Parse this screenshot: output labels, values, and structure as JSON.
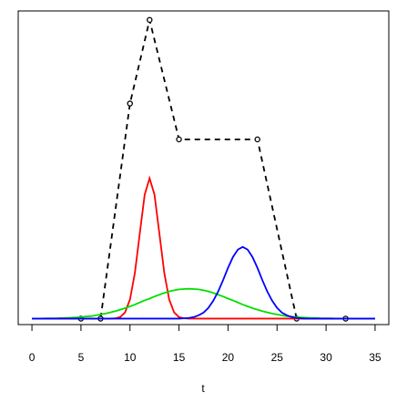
{
  "chart_data": {
    "type": "line",
    "x_label": "t",
    "xlim": [
      -1.4,
      36.4
    ],
    "ylim": [
      -0.02,
      1.03
    ],
    "xticks": [
      0,
      5,
      10,
      15,
      20,
      25,
      30,
      35
    ],
    "series": [
      {
        "color": "#000000",
        "dash": true,
        "markers": true,
        "x": [
          5,
          7,
          10,
          12,
          15,
          23,
          27,
          32
        ],
        "values": [
          0,
          0,
          0.72,
          1,
          0.6,
          0.6,
          0,
          0
        ]
      },
      {
        "color": "#ff0000",
        "dash": false,
        "markers": false,
        "x": [
          0,
          0.5,
          1,
          1.5,
          2,
          2.5,
          3,
          3.5,
          4,
          4.5,
          5,
          5.5,
          6,
          6.5,
          7,
          7.5,
          8,
          8.5,
          9,
          9.5,
          10,
          10.5,
          11,
          11.5,
          12,
          12.5,
          13,
          13.5,
          14,
          14.5,
          15,
          15.5,
          16,
          16.5,
          17,
          17.5,
          18,
          18.5,
          19,
          19.5,
          20,
          20.5,
          21,
          21.5,
          22,
          22.5,
          23,
          23.5,
          24,
          24.5,
          25,
          25.5,
          26,
          26.5,
          27,
          27.5,
          28,
          28.5,
          29,
          29.5,
          30,
          30.5,
          31,
          31.5,
          32,
          32.5,
          33,
          33.5,
          34,
          34.5,
          35
        ],
        "values": [
          0,
          0,
          0,
          0,
          0,
          0,
          0,
          0,
          0,
          0,
          0,
          0,
          0,
          0,
          0,
          0,
          0,
          0.001,
          0.005,
          0.021,
          0.064,
          0.153,
          0.285,
          0.415,
          0.47,
          0.415,
          0.285,
          0.153,
          0.064,
          0.021,
          0.005,
          0.001,
          0,
          0,
          0,
          0,
          0,
          0,
          0,
          0,
          0,
          0,
          0,
          0,
          0,
          0,
          0,
          0,
          0,
          0,
          0,
          0,
          0,
          0,
          0,
          0,
          0,
          0,
          0,
          0,
          0,
          0,
          0,
          0,
          0,
          0,
          0,
          0,
          0,
          0,
          0
        ]
      },
      {
        "color": "#00e000",
        "dash": false,
        "markers": false,
        "x": [
          0,
          0.5,
          1,
          1.5,
          2,
          2.5,
          3,
          3.5,
          4,
          4.5,
          5,
          5.5,
          6,
          6.5,
          7,
          7.5,
          8,
          8.5,
          9,
          9.5,
          10,
          10.5,
          11,
          11.5,
          12,
          12.5,
          13,
          13.5,
          14,
          14.5,
          15,
          15.5,
          16,
          16.5,
          17,
          17.5,
          18,
          18.5,
          19,
          19.5,
          20,
          20.5,
          21,
          21.5,
          22,
          22.5,
          23,
          23.5,
          24,
          24.5,
          25,
          25.5,
          26,
          26.5,
          27,
          27.5,
          28,
          28.5,
          29,
          29.5,
          30,
          30.5,
          31,
          31.5,
          32,
          32.5,
          33,
          33.5,
          34,
          34.5,
          35
        ],
        "values": [
          0,
          0,
          0,
          0.001,
          0.001,
          0.001,
          0.002,
          0.002,
          0.003,
          0.004,
          0.005,
          0.007,
          0.008,
          0.011,
          0.014,
          0.017,
          0.021,
          0.025,
          0.03,
          0.035,
          0.041,
          0.047,
          0.054,
          0.061,
          0.067,
          0.074,
          0.08,
          0.086,
          0.091,
          0.095,
          0.098,
          0.099,
          0.1,
          0.099,
          0.098,
          0.095,
          0.091,
          0.086,
          0.08,
          0.074,
          0.067,
          0.061,
          0.054,
          0.047,
          0.041,
          0.035,
          0.03,
          0.025,
          0.021,
          0.017,
          0.014,
          0.011,
          0.008,
          0.007,
          0.005,
          0.004,
          0.003,
          0.002,
          0.002,
          0.001,
          0.001,
          0.001,
          0,
          0,
          0,
          0,
          0,
          0,
          0,
          0,
          0
        ]
      },
      {
        "color": "#0000ff",
        "dash": false,
        "markers": false,
        "x": [
          0,
          0.5,
          1,
          1.5,
          2,
          2.5,
          3,
          3.5,
          4,
          4.5,
          5,
          5.5,
          6,
          6.5,
          7,
          7.5,
          8,
          8.5,
          9,
          9.5,
          10,
          10.5,
          11,
          11.5,
          12,
          12.5,
          13,
          13.5,
          14,
          14.5,
          15,
          15.5,
          16,
          16.5,
          17,
          17.5,
          18,
          18.5,
          19,
          19.5,
          20,
          20.5,
          21,
          21.5,
          22,
          22.5,
          23,
          23.5,
          24,
          24.5,
          25,
          25.5,
          26,
          26.5,
          27,
          27.5,
          28,
          28.5,
          29,
          29.5,
          30,
          30.5,
          31,
          31.5,
          32,
          32.5,
          33,
          33.5,
          34,
          34.5,
          35
        ],
        "values": [
          0,
          0,
          0,
          0,
          0,
          0,
          0,
          0,
          0,
          0,
          0,
          0,
          0,
          0,
          0,
          0,
          0,
          0,
          0,
          0,
          0,
          0,
          0,
          0,
          0,
          0,
          0,
          0,
          0,
          0,
          0,
          0.001,
          0.002,
          0.005,
          0.011,
          0.02,
          0.036,
          0.06,
          0.091,
          0.129,
          0.17,
          0.206,
          0.231,
          0.24,
          0.231,
          0.206,
          0.17,
          0.129,
          0.091,
          0.06,
          0.036,
          0.02,
          0.011,
          0.005,
          0.002,
          0.001,
          0,
          0,
          0,
          0,
          0,
          0,
          0,
          0,
          0,
          0,
          0,
          0,
          0,
          0,
          0
        ]
      }
    ]
  }
}
